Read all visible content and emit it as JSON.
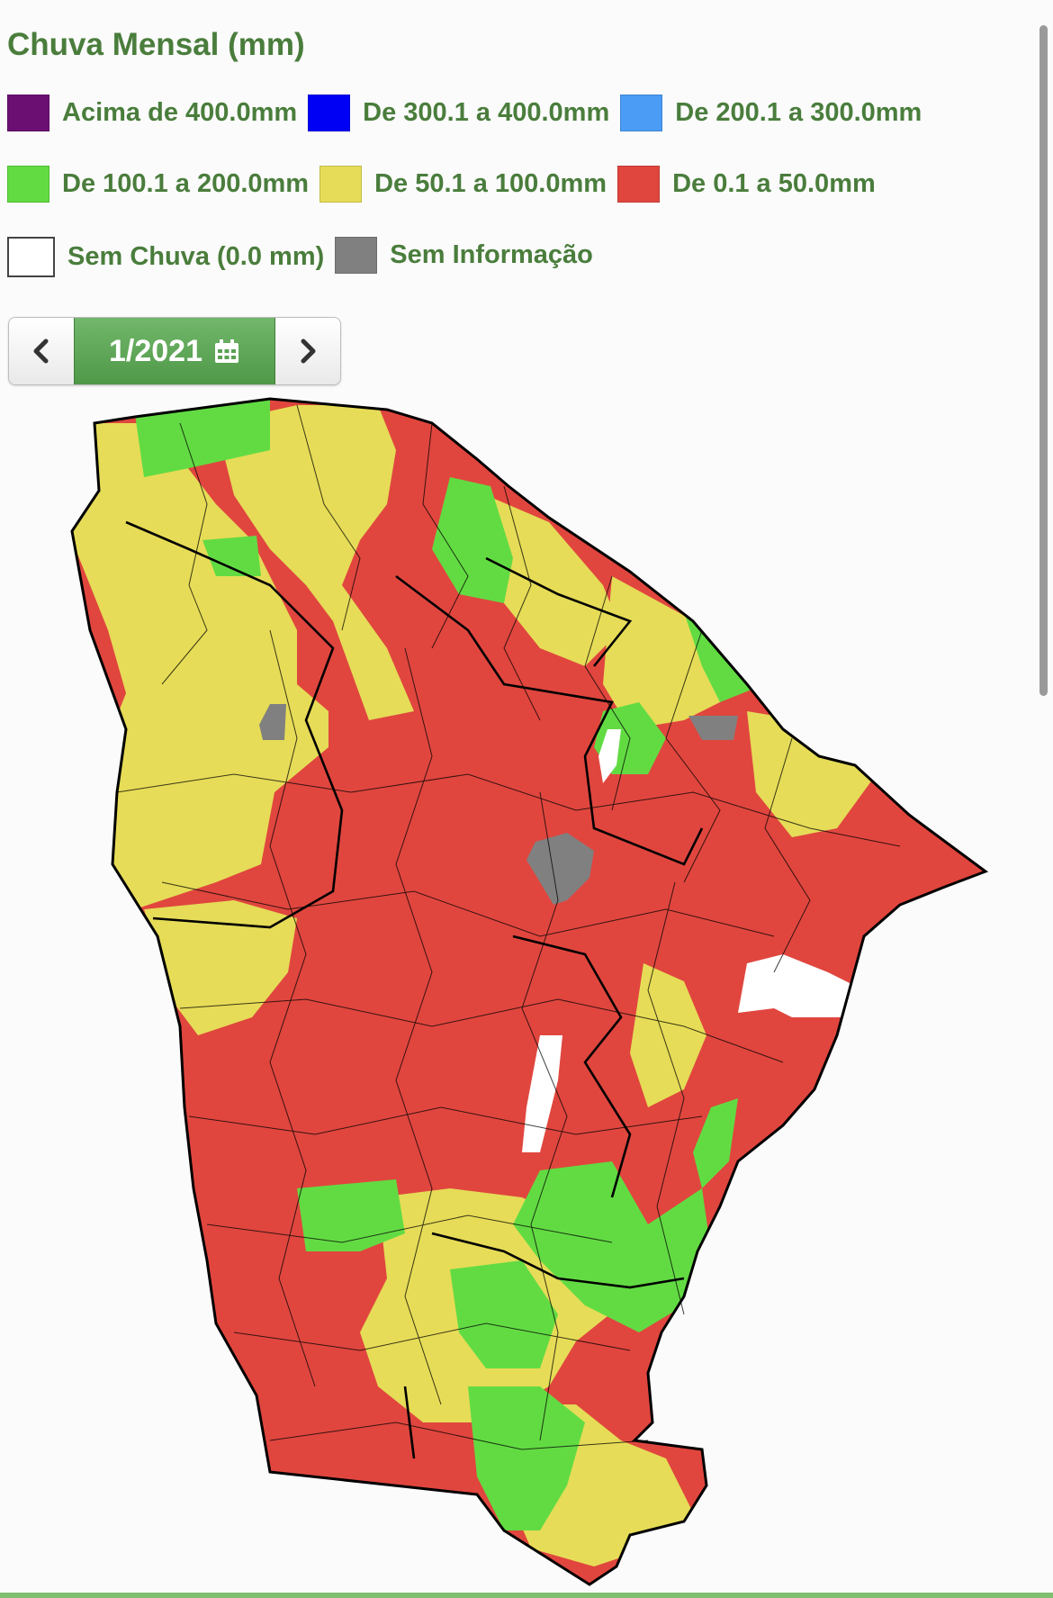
{
  "title": "Chuva Mensal (mm)",
  "legend": [
    {
      "label": "Acima de 400.0mm",
      "color": "#6b0f73"
    },
    {
      "label": "De 300.1 a 400.0mm",
      "color": "#0000f5"
    },
    {
      "label": "De 200.1 a 300.0mm",
      "color": "#4a9cf5"
    },
    {
      "label": "De 100.1 a 200.0mm",
      "color": "#62db43"
    },
    {
      "label": "De 50.1 a 100.0mm",
      "color": "#e6dc57"
    },
    {
      "label": "De 0.1 a 50.0mm",
      "color": "#e0463e"
    },
    {
      "label": "Sem Chuva (0.0 mm)",
      "color": "#ffffff"
    },
    {
      "label": "Sem Informação",
      "color": "#808080"
    }
  ],
  "date_nav": {
    "value": "1/2021",
    "prev_icon": "chevron-left-icon",
    "next_icon": "chevron-right-icon",
    "calendar_icon": "calendar-icon"
  },
  "map": {
    "region": "Ceará",
    "dominant_category": "De 0.1 a 50.0mm"
  }
}
